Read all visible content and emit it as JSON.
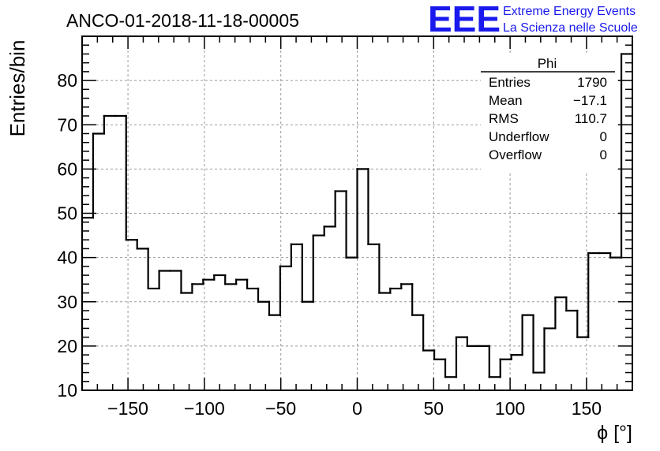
{
  "header": {
    "run_title": "ANCO-01-2018-11-18-00005",
    "logo_text": "EEE",
    "logo_line1": "Extreme Energy Events",
    "logo_line2": "La Scienza nelle Scuole"
  },
  "colors": {
    "logo_blue": "#1a1aee",
    "histogram": "#000000",
    "grid": "#999999"
  },
  "stats": {
    "name": "Phi",
    "rows": [
      {
        "label": "Entries",
        "value": "1790"
      },
      {
        "label": "Mean",
        "value": "−17.1"
      },
      {
        "label": "RMS",
        "value": "110.7"
      },
      {
        "label": "Underflow",
        "value": "0"
      },
      {
        "label": "Overflow",
        "value": "0"
      }
    ]
  },
  "chart_data": {
    "type": "bar",
    "histogram_style": "step",
    "xlabel": "ϕ [°]",
    "ylabel": "Entries/bin",
    "xlim": [
      -180,
      180
    ],
    "ylim": [
      10,
      90
    ],
    "bin_width": 7.2,
    "x_ticks": [
      -150,
      -100,
      -50,
      0,
      50,
      100,
      150
    ],
    "y_ticks": [
      10,
      20,
      30,
      40,
      50,
      60,
      70,
      80
    ],
    "x_tick_labels": [
      "−150",
      "−100",
      "−50",
      "0",
      "50",
      "100",
      "150"
    ],
    "y_tick_labels": [
      "10",
      "20",
      "30",
      "40",
      "50",
      "60",
      "70",
      "80"
    ],
    "grid": true,
    "values": [
      49,
      68,
      72,
      72,
      44,
      42,
      33,
      37,
      37,
      32,
      34,
      35,
      36,
      34,
      35,
      33,
      30,
      27,
      38,
      43,
      30,
      45,
      47,
      55,
      40,
      60,
      43,
      32,
      33,
      34,
      27,
      19,
      17,
      13,
      22,
      20,
      20,
      13,
      17,
      18,
      27,
      14,
      24,
      31,
      28,
      22,
      41,
      41,
      40,
      86
    ]
  }
}
